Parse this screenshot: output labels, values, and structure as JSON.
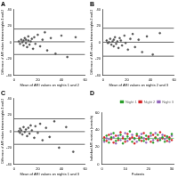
{
  "chart_data": [
    {
      "type": "scatter",
      "title": "A",
      "x_label": "Mean of ARI values on nights 1 and 2",
      "y_label": "Difference of ARI values between nights 1 and 2",
      "xlim": [
        0,
        60
      ],
      "xticks": [
        0,
        20,
        40,
        60
      ],
      "ylim": [
        -40,
        40
      ],
      "yticks": [
        -40,
        -20,
        0,
        20,
        40
      ],
      "x": [
        4,
        5,
        6,
        7,
        8,
        8,
        9,
        10,
        10,
        11,
        12,
        12,
        13,
        14,
        15,
        16,
        17,
        18,
        20,
        22,
        24,
        26,
        28,
        31,
        35,
        40,
        45,
        52
      ],
      "values": [
        1,
        -2,
        3,
        0,
        -4,
        2,
        5,
        -1,
        3,
        -6,
        2,
        7,
        -3,
        1,
        4,
        -8,
        6,
        -2,
        9,
        -5,
        3,
        12,
        -10,
        5,
        -14,
        8,
        -18,
        6
      ],
      "hlines": [
        0.5,
        16,
        -15
      ],
      "color": "#555555",
      "marker": "circle",
      "line_style": "solid",
      "grid": false
    },
    {
      "type": "scatter",
      "title": "B",
      "x_label": "Mean of ARI values on nights 2 and 3",
      "y_label": "Difference of ARI values between nights 2 and 3",
      "xlim": [
        0,
        60
      ],
      "xticks": [
        0,
        20,
        40,
        60
      ],
      "ylim": [
        -40,
        40
      ],
      "yticks": [
        -40,
        -20,
        0,
        20,
        40
      ],
      "x": [
        3,
        4,
        5,
        6,
        7,
        8,
        9,
        9,
        10,
        11,
        12,
        13,
        14,
        15,
        16,
        18,
        19,
        21,
        23,
        25,
        27,
        30,
        33,
        37,
        42,
        48
      ],
      "values": [
        2,
        -1,
        0,
        4,
        -3,
        1,
        -5,
        3,
        6,
        -2,
        1,
        -7,
        5,
        2,
        -4,
        8,
        -1,
        -9,
        4,
        10,
        -6,
        3,
        -12,
        7,
        -15,
        11
      ],
      "hlines": [
        0,
        17,
        -17
      ],
      "color": "#555555",
      "marker": "circle",
      "line_style": "solid",
      "grid": false
    },
    {
      "type": "scatter",
      "title": "C",
      "x_label": "Mean of ARI values on nights 1 and 3",
      "y_label": "Difference of ARI values between nights 1 and 3",
      "xlim": [
        0,
        60
      ],
      "xticks": [
        0,
        20,
        40,
        60
      ],
      "ylim": [
        -40,
        40
      ],
      "yticks": [
        -40,
        -20,
        0,
        20,
        40
      ],
      "x": [
        4,
        5,
        5,
        6,
        7,
        8,
        9,
        10,
        11,
        12,
        13,
        14,
        15,
        17,
        18,
        20,
        22,
        24,
        27,
        30,
        34,
        38,
        44,
        50
      ],
      "values": [
        0,
        3,
        -2,
        1,
        -4,
        5,
        -1,
        2,
        -6,
        4,
        -3,
        7,
        1,
        -8,
        6,
        -2,
        9,
        -11,
        4,
        -7,
        12,
        -20,
        5,
        -25
      ],
      "hlines": [
        -0.5,
        15,
        -16
      ],
      "color": "#555555",
      "marker": "circle",
      "line_style": "solid",
      "grid": false
    },
    {
      "type": "scatter",
      "title": "D",
      "x_label": "Patients",
      "y_label": "Individual ARI variation (events/h)",
      "xlim": [
        0,
        31
      ],
      "xticks": [
        0,
        10,
        20,
        30
      ],
      "ylim": [
        0,
        60
      ],
      "yticks": [
        0,
        20,
        40,
        60
      ],
      "x": [
        1,
        2,
        3,
        4,
        5,
        6,
        7,
        8,
        9,
        10,
        11,
        12,
        13,
        14,
        15,
        16,
        17,
        18,
        19,
        20,
        21,
        22,
        23,
        24,
        25,
        26,
        27,
        28,
        29,
        30
      ],
      "series": [
        {
          "name": "Night 1",
          "color": "#2ca02c",
          "values": [
            28,
            33,
            25,
            31,
            36,
            27,
            30,
            34,
            24,
            29,
            32,
            38,
            26,
            30,
            35,
            28,
            31,
            27,
            33,
            29,
            36,
            25,
            30,
            34,
            28,
            31,
            26,
            32,
            29,
            35
          ]
        },
        {
          "name": "Night 2",
          "color": "#d62728",
          "values": [
            31,
            27,
            34,
            29,
            25,
            33,
            28,
            37,
            30,
            26,
            35,
            29,
            31,
            24,
            33,
            30,
            27,
            36,
            29,
            32,
            26,
            34,
            31,
            28,
            37,
            30,
            33,
            27,
            31,
            28
          ]
        },
        {
          "name": "Night 3",
          "color": "#9467bd",
          "values": [
            26,
            30,
            29,
            35,
            31,
            24,
            33,
            28,
            32,
            36,
            27,
            30,
            34,
            29,
            26,
            32,
            35,
            30,
            25,
            31,
            33,
            28,
            36,
            27,
            30,
            34,
            29,
            31,
            26,
            33
          ]
        }
      ],
      "hlines": [
        30
      ],
      "marker": "circle",
      "line_style": "solid",
      "legend": "top-right",
      "grid": false
    }
  ]
}
